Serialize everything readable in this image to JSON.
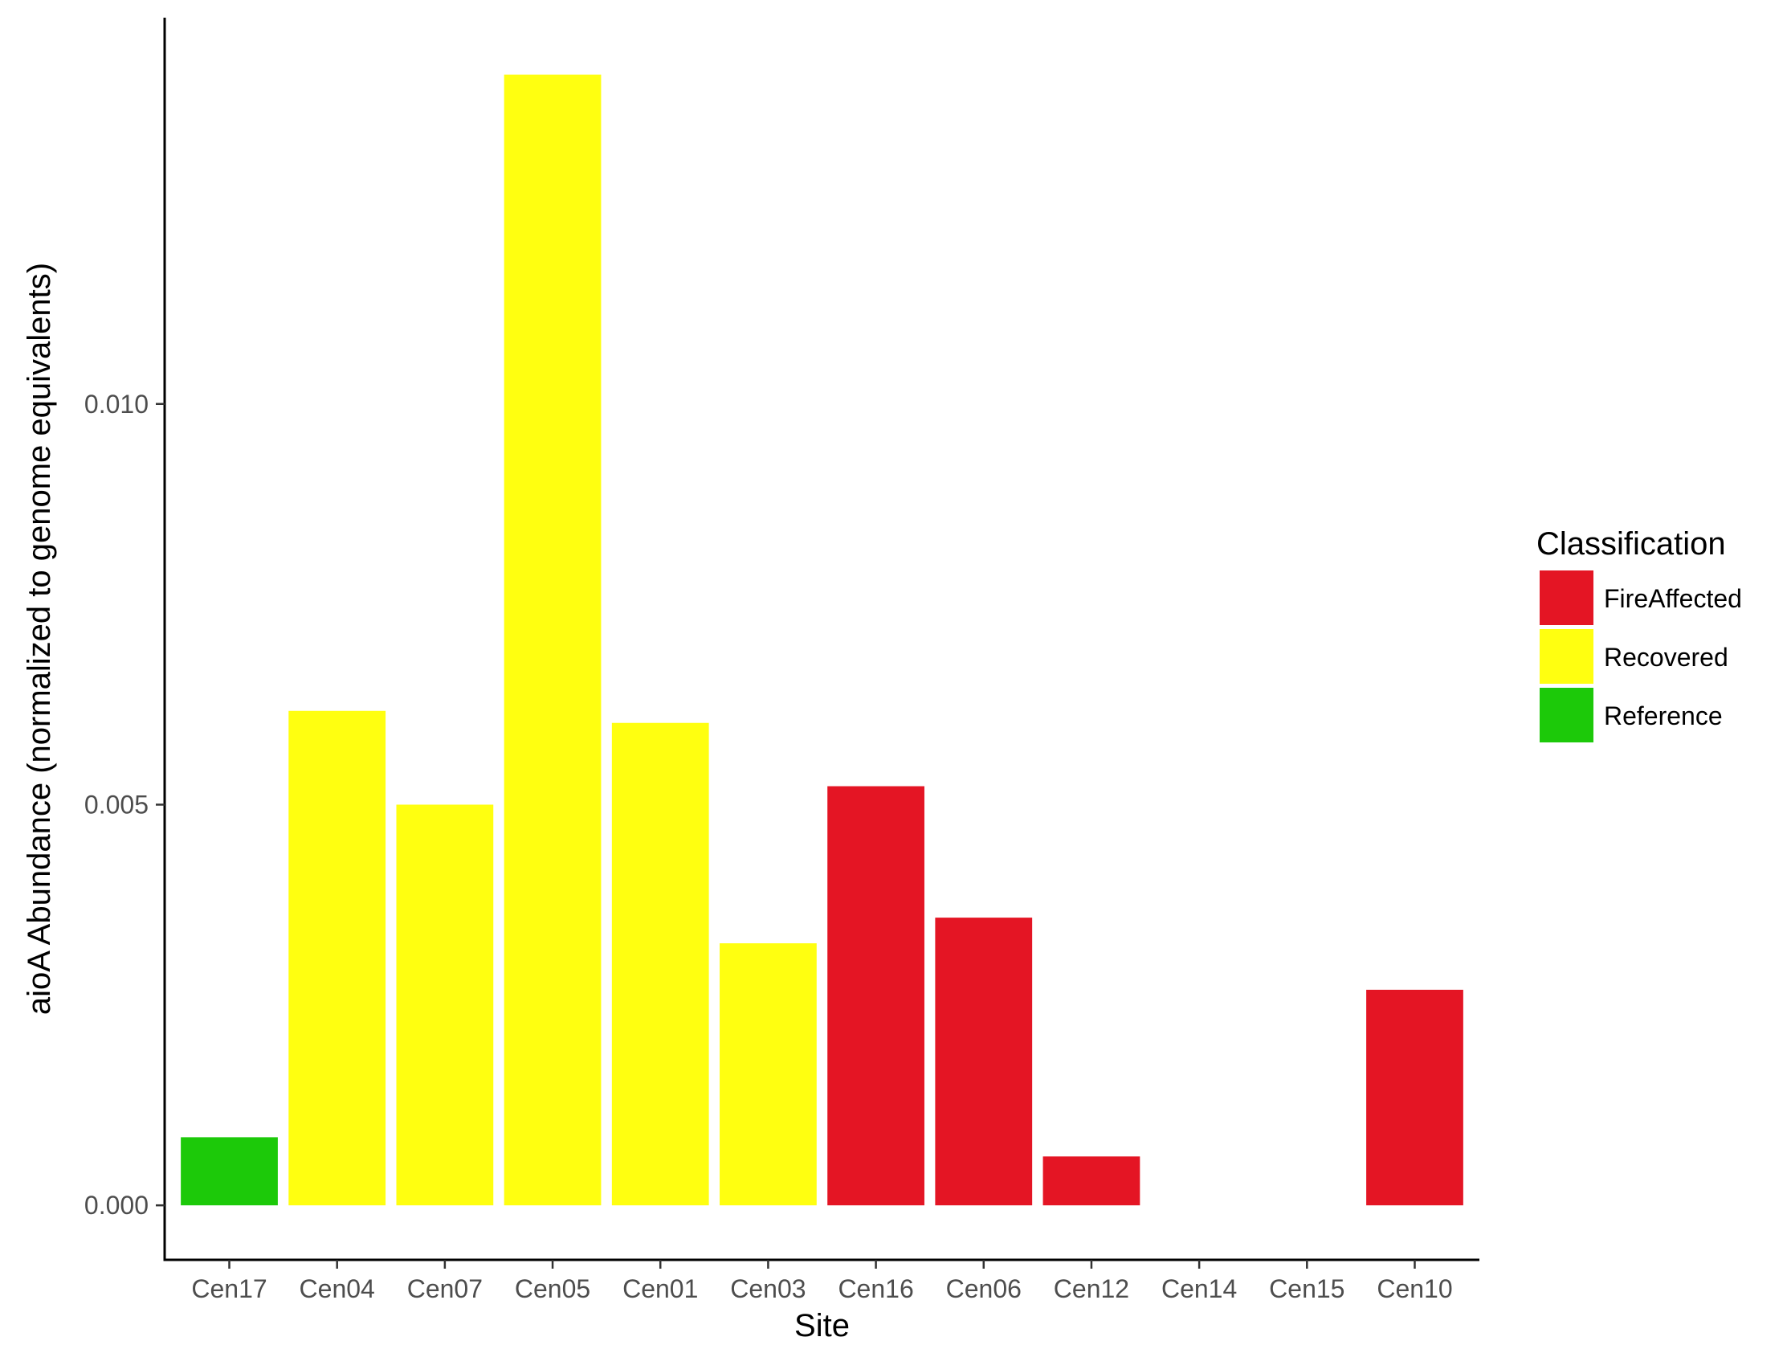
{
  "chart_data": {
    "type": "bar",
    "xlabel": "Site",
    "ylabel": "aioA Abundance (normalized to genome equivalents)",
    "categories": [
      "Cen17",
      "Cen04",
      "Cen07",
      "Cen05",
      "Cen01",
      "Cen03",
      "Cen16",
      "Cen06",
      "Cen12",
      "Cen14",
      "Cen15",
      "Cen10"
    ],
    "values": [
      0.00085,
      0.00617,
      0.005,
      0.01411,
      0.00602,
      0.00327,
      0.00523,
      0.00359,
      0.00061,
      0,
      0,
      0.00269
    ],
    "classes": [
      "Reference",
      "Recovered",
      "Recovered",
      "Recovered",
      "Recovered",
      "Recovered",
      "FireAffected",
      "FireAffected",
      "FireAffected",
      "FireAffected",
      "FireAffected",
      "FireAffected"
    ],
    "ylim": [
      -0.00068,
      0.01482
    ],
    "yticks": [
      0.0,
      0.005,
      0.01
    ],
    "ytick_labels": [
      "0.000",
      "0.005",
      "0.010"
    ],
    "grid": false,
    "legend": {
      "title": "Classification",
      "placement": "right",
      "entries": [
        {
          "name": "FireAffected",
          "color": "#E41524"
        },
        {
          "name": "Recovered",
          "color": "#FFFF10"
        },
        {
          "name": "Reference",
          "color": "#1CC909"
        }
      ]
    }
  }
}
